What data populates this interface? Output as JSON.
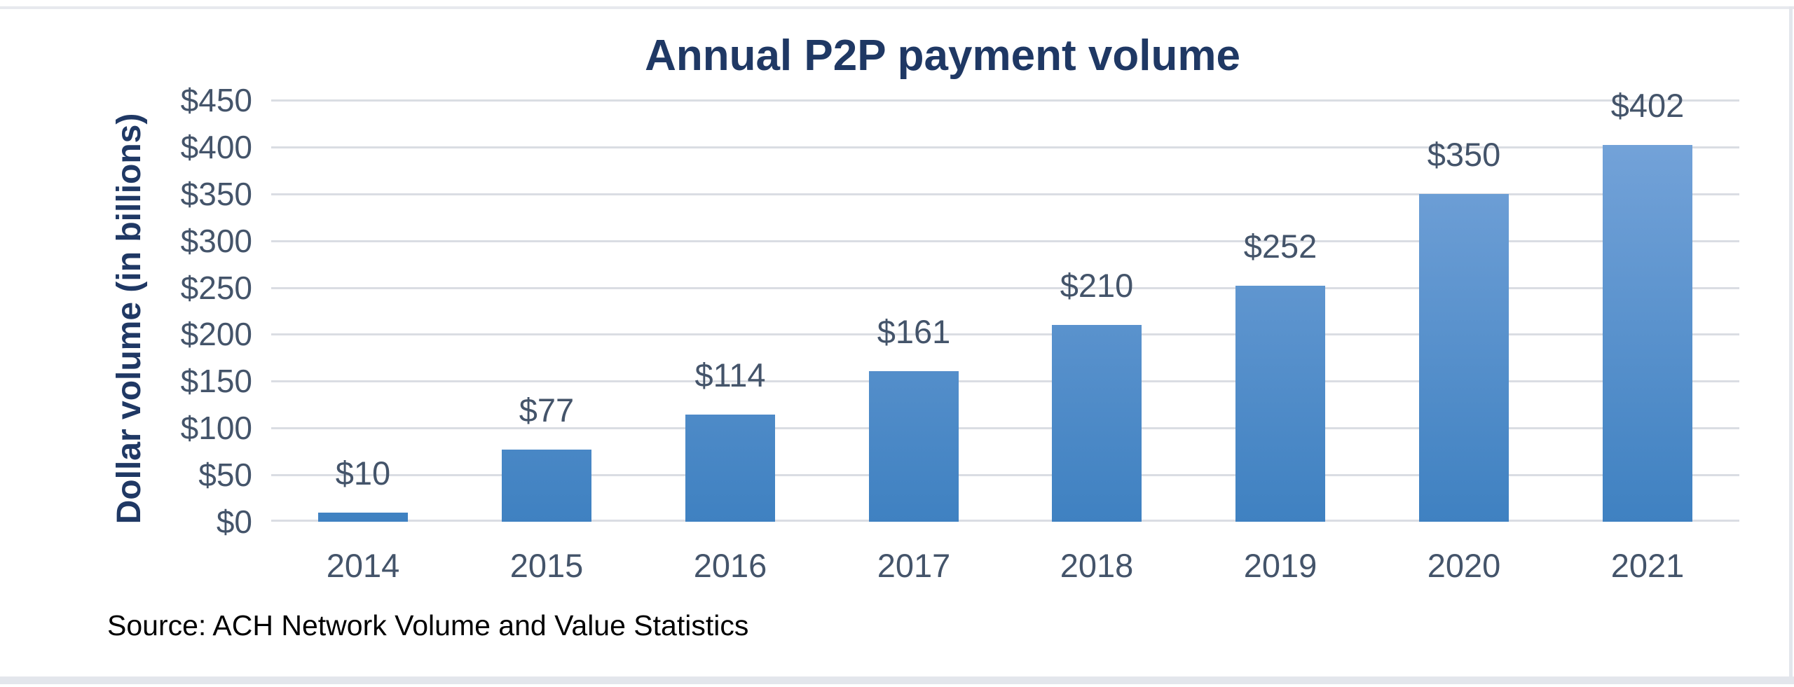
{
  "page": {
    "background": "#ffffff",
    "frame_color": "#e3e6ec"
  },
  "chart": {
    "title": "Annual P2P payment volume",
    "title_color": "#1f3864",
    "axis_label_color": "#44546a",
    "gridline_color": "#dadde3",
    "bar_gradient_top": "#79a6db",
    "bar_gradient_bottom": "#3f81c1"
  },
  "chart_data": {
    "type": "bar",
    "title": "Annual P2P payment volume",
    "categories": [
      "2014",
      "2015",
      "2016",
      "2017",
      "2018",
      "2019",
      "2020",
      "2021"
    ],
    "values": [
      10,
      77,
      114,
      161,
      210,
      252,
      350,
      402
    ],
    "data_labels": [
      "$10",
      "$77",
      "$114",
      "$161",
      "$210",
      "$252",
      "$350",
      "$402"
    ],
    "xlabel": "",
    "ylabel": "Dollar volume (in billions)",
    "ylim": [
      0,
      450
    ],
    "ytick_step": 50,
    "ytick_labels_top_to_bottom": [
      "$450",
      "$400",
      "$350",
      "$300",
      "$250",
      "$200",
      "$150",
      "$100",
      "$50",
      "$0"
    ],
    "grid": true,
    "legend": false,
    "source_note": "Source: ACH Network Volume and Value Statistics"
  }
}
